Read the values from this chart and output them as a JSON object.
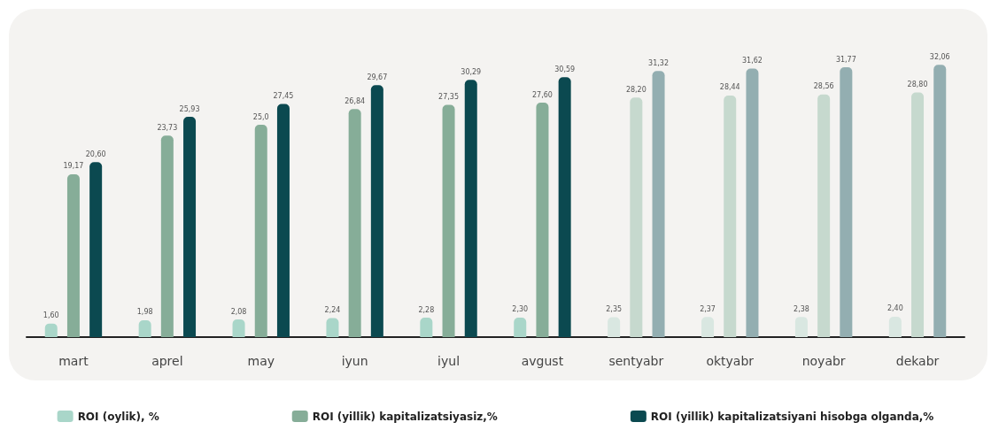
{
  "chart_data": {
    "type": "bar",
    "categories": [
      "mart",
      "aprel",
      "may",
      "iyun",
      "iyul",
      "avgust",
      "sentyabr",
      "oktyabr",
      "noyabr",
      "dekabr"
    ],
    "series": [
      {
        "name": "ROI (oylik), %",
        "color": "#a9d6c9",
        "colors": [
          "#a9d6c9",
          "#a9d6c9",
          "#a9d6c9",
          "#a9d6c9",
          "#a9d6c9",
          "#a9d6c9",
          "#d9e7e1",
          "#d9e7e1",
          "#d9e7e1",
          "#d9e7e1"
        ],
        "values": [
          1.6,
          1.98,
          2.08,
          2.24,
          2.28,
          2.3,
          2.35,
          2.37,
          2.38,
          2.4
        ],
        "value_labels": [
          "1,60",
          "1,98",
          "2,08",
          "2,24",
          "2,28",
          "2,30",
          "2,35",
          "2,37",
          "2,38",
          "2,40"
        ]
      },
      {
        "name": "ROI (yillik) kapitalizatsiyasiz,%",
        "color": "#86ad98",
        "colors": [
          "#86ad98",
          "#86ad98",
          "#86ad98",
          "#86ad98",
          "#86ad98",
          "#86ad98",
          "#c6d9ce",
          "#c6d9ce",
          "#c6d9ce",
          "#c6d9ce"
        ],
        "values": [
          19.17,
          23.73,
          25.0,
          26.84,
          27.35,
          27.6,
          28.2,
          28.44,
          28.56,
          28.8
        ],
        "value_labels": [
          "19,17",
          "23,73",
          "25,0",
          "26,84",
          "27,35",
          "27,60",
          "28,20",
          "28,44",
          "28,56",
          "28,80"
        ]
      },
      {
        "name": "ROI (yillik) kapitalizatsiyani hisobga olganda,%",
        "color": "#0b4950",
        "colors": [
          "#0b4950",
          "#0b4950",
          "#0b4950",
          "#0b4950",
          "#0b4950",
          "#0b4950",
          "#93aeb1",
          "#93aeb1",
          "#93aeb1",
          "#93aeb1"
        ],
        "values": [
          20.6,
          25.93,
          27.45,
          29.67,
          30.29,
          30.59,
          31.32,
          31.62,
          31.77,
          32.06
        ],
        "value_labels": [
          "20,60",
          "25,93",
          "27,45",
          "29,67",
          "30,29",
          "30,59",
          "31,32",
          "31,62",
          "31,77",
          "32,06"
        ]
      }
    ],
    "grid": false,
    "legend": "bottom"
  }
}
